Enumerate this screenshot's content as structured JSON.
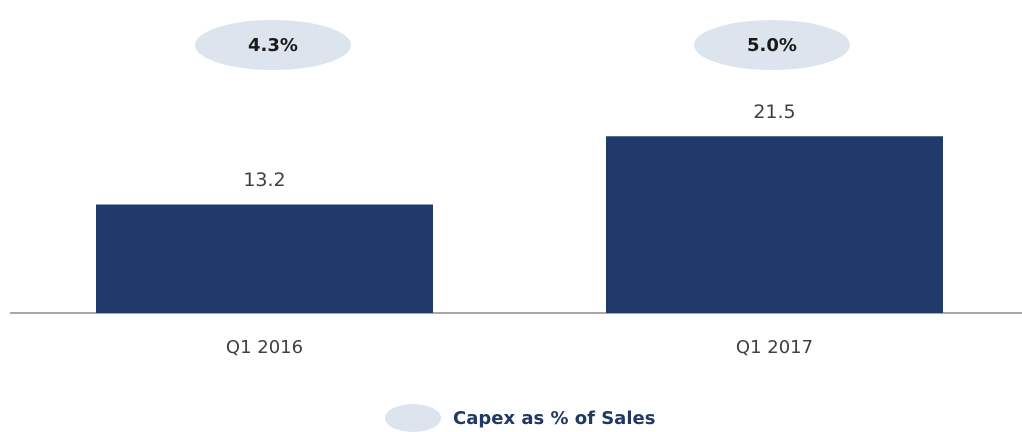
{
  "chart_data": {
    "type": "bar",
    "categories": [
      "Q1 2016",
      "Q1 2017"
    ],
    "values": [
      13.2,
      21.5
    ],
    "color": "#203a6b",
    "series": [
      {
        "name": "Capex as % of Sales",
        "color": "#dce4ed",
        "values": [
          4.3,
          5.0
        ],
        "value_labels": [
          "4.3%",
          "5.0%"
        ]
      }
    ]
  }
}
